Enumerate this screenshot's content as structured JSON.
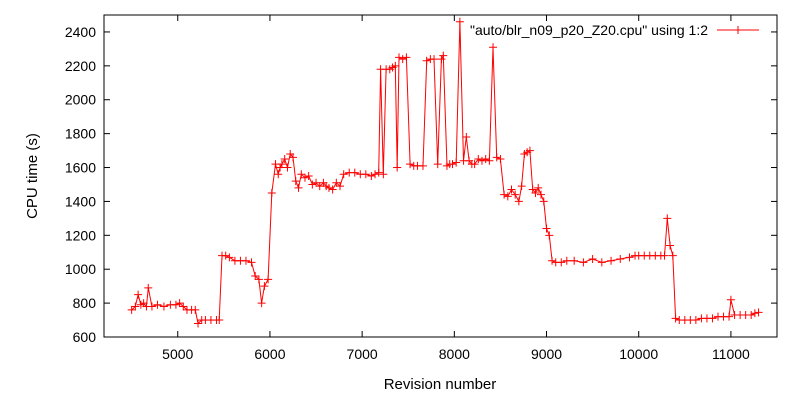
{
  "chart_data": {
    "type": "line",
    "title": "",
    "xlabel": "Revision number",
    "ylabel": "CPU time (s)",
    "xlim": [
      4200,
      11500
    ],
    "ylim": [
      600,
      2500
    ],
    "x_ticks": [
      5000,
      6000,
      7000,
      8000,
      9000,
      10000,
      11000
    ],
    "y_ticks": [
      600,
      800,
      1000,
      1200,
      1400,
      1600,
      1800,
      2000,
      2200,
      2400
    ],
    "grid": false,
    "legend_position": "top-right",
    "series": [
      {
        "name": "\"auto/blr_n09_p20_Z20.cpu\" using 1:2",
        "color": "#ff0000",
        "marker": "plus",
        "x": [
          4500,
          4540,
          4570,
          4600,
          4630,
          4660,
          4680,
          4720,
          4780,
          4850,
          4920,
          4980,
          5020,
          5060,
          5100,
          5150,
          5190,
          5220,
          5260,
          5300,
          5360,
          5420,
          5450,
          5480,
          5520,
          5560,
          5620,
          5680,
          5740,
          5800,
          5840,
          5880,
          5910,
          5940,
          5980,
          6020,
          6060,
          6090,
          6110,
          6130,
          6160,
          6190,
          6220,
          6250,
          6280,
          6310,
          6340,
          6380,
          6420,
          6460,
          6500,
          6540,
          6580,
          6610,
          6640,
          6680,
          6720,
          6760,
          6800,
          6860,
          6920,
          6980,
          7040,
          7100,
          7140,
          7180,
          7200,
          7230,
          7260,
          7300,
          7330,
          7360,
          7380,
          7400,
          7440,
          7480,
          7520,
          7560,
          7600,
          7660,
          7700,
          7740,
          7780,
          7820,
          7860,
          7880,
          7920,
          7950,
          7980,
          8020,
          8060,
          8100,
          8130,
          8160,
          8190,
          8220,
          8260,
          8300,
          8340,
          8380,
          8420,
          8460,
          8500,
          8540,
          8580,
          8620,
          8660,
          8700,
          8730,
          8760,
          8790,
          8820,
          8850,
          8880,
          8910,
          8940,
          8970,
          9000,
          9030,
          9060,
          9100,
          9160,
          9220,
          9300,
          9400,
          9500,
          9600,
          9700,
          9800,
          9900,
          9960,
          10000,
          10060,
          10120,
          10180,
          10240,
          10280,
          10310,
          10340,
          10370,
          10400,
          10440,
          10500,
          10560,
          10620,
          10680,
          10740,
          10800,
          10860,
          10920,
          10980,
          11000,
          11040,
          11100,
          11160,
          11220,
          11260,
          11300
        ],
        "y": [
          760,
          780,
          850,
          790,
          800,
          780,
          890,
          780,
          790,
          780,
          790,
          790,
          800,
          780,
          760,
          760,
          760,
          680,
          700,
          700,
          700,
          700,
          700,
          1080,
          1080,
          1070,
          1050,
          1050,
          1050,
          1040,
          960,
          940,
          800,
          900,
          940,
          1450,
          1620,
          1560,
          1600,
          1620,
          1650,
          1600,
          1680,
          1660,
          1520,
          1480,
          1560,
          1540,
          1550,
          1500,
          1510,
          1490,
          1510,
          1490,
          1480,
          1470,
          1510,
          1490,
          1560,
          1570,
          1570,
          1560,
          1560,
          1550,
          1560,
          1570,
          2180,
          1560,
          2180,
          2180,
          2190,
          2200,
          1600,
          2250,
          2240,
          2250,
          1620,
          1610,
          1610,
          1610,
          2230,
          2240,
          2240,
          1620,
          2240,
          2260,
          1610,
          1620,
          1620,
          1630,
          2460,
          1640,
          1780,
          1640,
          1620,
          1620,
          1650,
          1640,
          1650,
          1640,
          2310,
          1660,
          1650,
          1440,
          1430,
          1470,
          1440,
          1400,
          1490,
          1680,
          1690,
          1700,
          1470,
          1450,
          1480,
          1440,
          1400,
          1240,
          1200,
          1050,
          1040,
          1040,
          1050,
          1050,
          1040,
          1060,
          1040,
          1050,
          1060,
          1070,
          1080,
          1080,
          1080,
          1080,
          1080,
          1080,
          1080,
          1300,
          1140,
          1080,
          710,
          700,
          700,
          700,
          700,
          710,
          710,
          710,
          720,
          720,
          720,
          820,
          730,
          730,
          730,
          730,
          740,
          745
        ]
      }
    ]
  }
}
